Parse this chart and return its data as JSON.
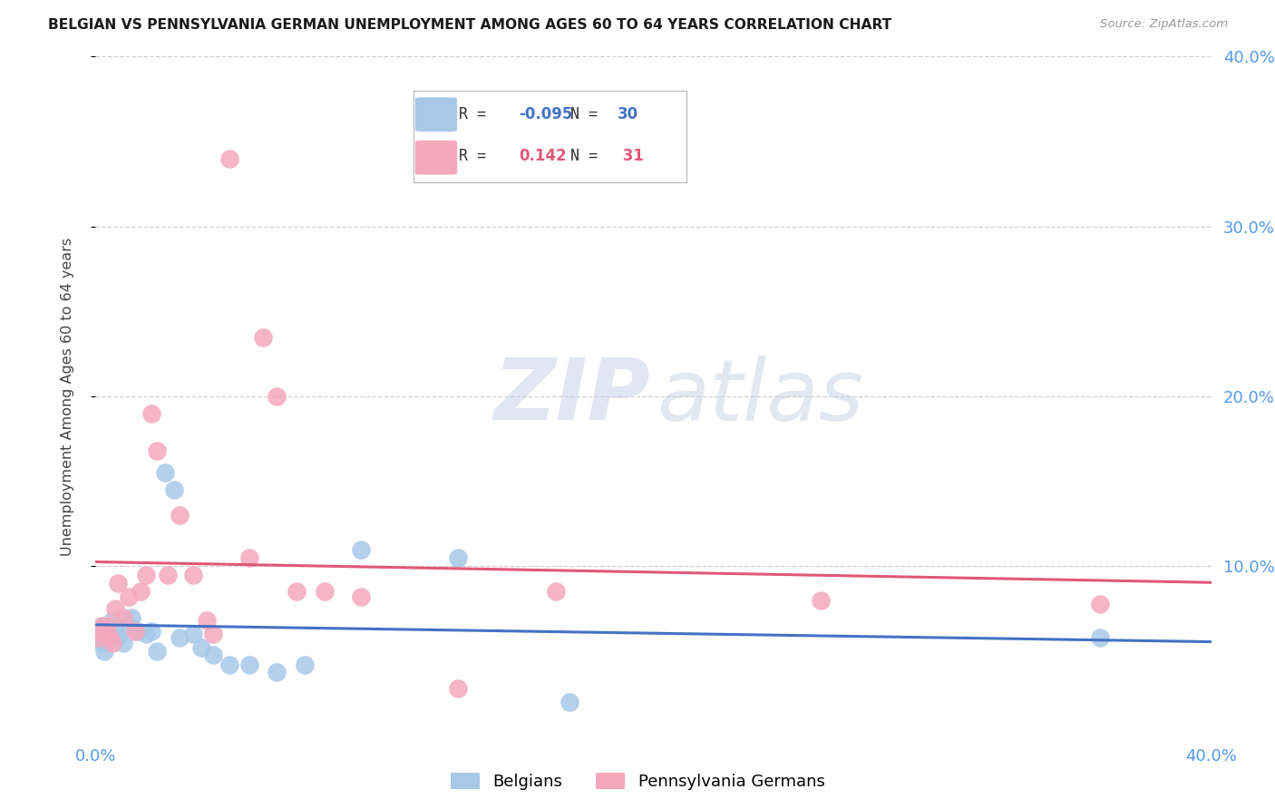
{
  "title": "BELGIAN VS PENNSYLVANIA GERMAN UNEMPLOYMENT AMONG AGES 60 TO 64 YEARS CORRELATION CHART",
  "source": "Source: ZipAtlas.com",
  "ylabel": "Unemployment Among Ages 60 to 64 years",
  "xlim": [
    0.0,
    0.4
  ],
  "ylim": [
    0.0,
    0.4
  ],
  "x_ticks": [
    0.0,
    0.1,
    0.2,
    0.3,
    0.4
  ],
  "y_ticks": [
    0.1,
    0.2,
    0.3,
    0.4
  ],
  "legend_blue_R": "-0.095",
  "legend_blue_N": "30",
  "legend_pink_R": "0.142",
  "legend_pink_N": "31",
  "blue_scatter_color": "#A8C8E8",
  "pink_scatter_color": "#F4A8BE",
  "blue_line_color": "#4472C4",
  "pink_line_color": "#E05878",
  "belgians_x": [
    0.001,
    0.002,
    0.003,
    0.003,
    0.004,
    0.005,
    0.006,
    0.007,
    0.008,
    0.01,
    0.012,
    0.013,
    0.015,
    0.018,
    0.02,
    0.022,
    0.025,
    0.028,
    0.03,
    0.035,
    0.038,
    0.042,
    0.048,
    0.055,
    0.065,
    0.075,
    0.095,
    0.13,
    0.17,
    0.36
  ],
  "belgians_y": [
    0.06,
    0.055,
    0.065,
    0.05,
    0.06,
    0.058,
    0.068,
    0.062,
    0.058,
    0.055,
    0.065,
    0.07,
    0.062,
    0.06,
    0.062,
    0.05,
    0.155,
    0.145,
    0.058,
    0.06,
    0.052,
    0.048,
    0.042,
    0.042,
    0.038,
    0.042,
    0.11,
    0.105,
    0.02,
    0.058
  ],
  "penn_german_x": [
    0.001,
    0.002,
    0.003,
    0.004,
    0.005,
    0.006,
    0.007,
    0.008,
    0.01,
    0.012,
    0.014,
    0.016,
    0.018,
    0.02,
    0.022,
    0.026,
    0.03,
    0.035,
    0.04,
    0.042,
    0.048,
    0.055,
    0.06,
    0.065,
    0.072,
    0.082,
    0.095,
    0.13,
    0.165,
    0.26,
    0.36
  ],
  "penn_german_y": [
    0.058,
    0.065,
    0.06,
    0.065,
    0.058,
    0.055,
    0.075,
    0.09,
    0.07,
    0.082,
    0.062,
    0.085,
    0.095,
    0.19,
    0.168,
    0.095,
    0.13,
    0.095,
    0.068,
    0.06,
    0.34,
    0.105,
    0.235,
    0.2,
    0.085,
    0.085,
    0.082,
    0.028,
    0.085,
    0.08,
    0.078
  ],
  "background_color": "#FFFFFF",
  "grid_color": "#D0D0D0"
}
